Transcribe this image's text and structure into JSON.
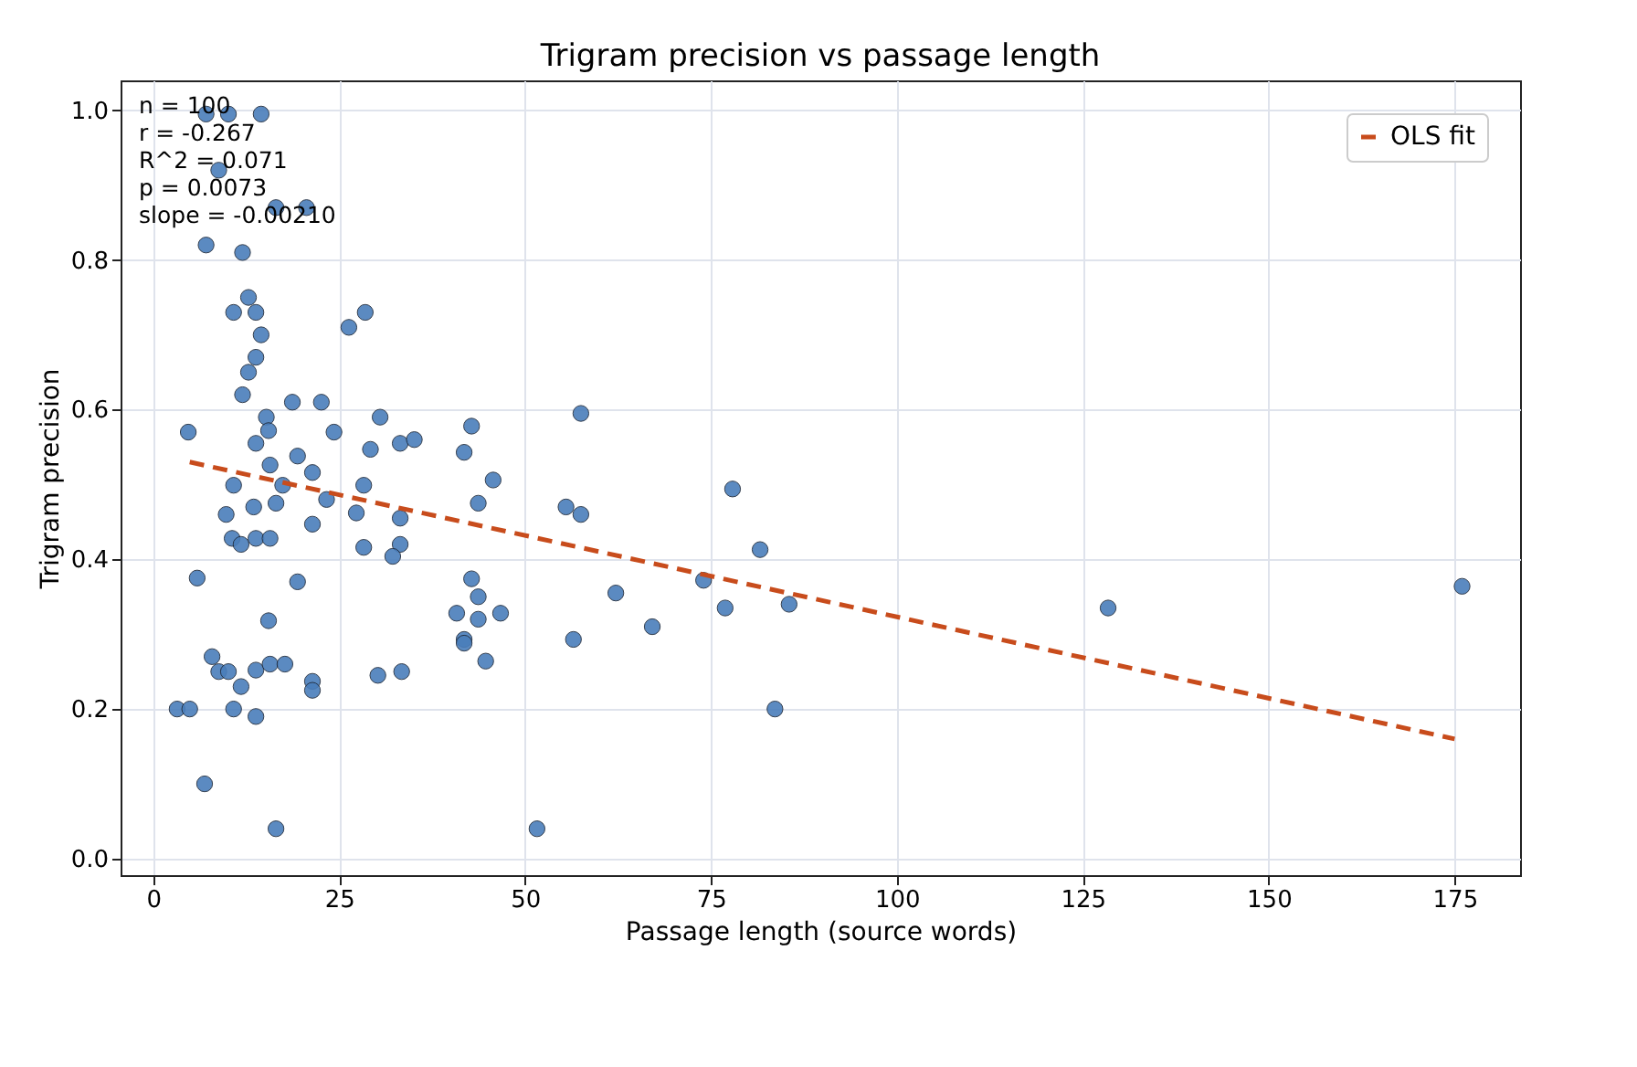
{
  "chart_data": {
    "type": "scatter",
    "title": "Trigram precision vs passage length",
    "xlabel": "Passage length (source words)",
    "ylabel": "Trigram precision",
    "xlim": [
      -4.4,
      183.8
    ],
    "ylim": [
      -0.022,
      1.04
    ],
    "xticks": [
      0,
      25,
      50,
      75,
      100,
      125,
      150,
      175
    ],
    "yticks": [
      {
        "value": 0,
        "label": "0.0"
      },
      {
        "value": 0.2,
        "label": "0.2"
      },
      {
        "value": 0.4,
        "label": "0.4"
      },
      {
        "value": 0.6,
        "label": "0.6"
      },
      {
        "value": 0.8,
        "label": "0.8"
      },
      {
        "value": 1,
        "label": "1.0"
      }
    ],
    "grid": true,
    "legend": "top right",
    "annotations": [
      "n = 100",
      "r = -0.267",
      "R^2 = 0.071",
      "p = 0.0073",
      "slope = -0.00210"
    ],
    "series": [
      {
        "color": "#4a7ebb",
        "marker": "circle",
        "x": [
          7.1,
          10.1,
          14.5,
          8.8,
          16.5,
          20.6,
          7.1,
          12,
          12.8,
          10.8,
          13.8,
          14.5,
          13.8,
          12.8,
          12,
          26.3,
          28.5,
          18.7,
          22.6,
          30.5,
          4.7,
          15.2,
          24.3,
          57.5,
          5.9,
          3.2,
          6.9,
          16.5,
          51.6,
          13.8,
          15.5,
          29.2,
          33.2,
          35.1,
          42.8,
          41.8,
          15.7,
          19.4,
          21.4,
          10.8,
          17.4,
          28.3,
          23.3,
          16.5,
          13.5,
          9.8,
          27.3,
          33.2,
          21.4,
          10.6,
          11.8,
          13.8,
          15.7,
          28.3,
          33.2,
          32.2,
          19.4,
          15.5,
          7.9,
          8.8,
          10.1,
          11.8,
          13.8,
          15.7,
          17.7,
          21.4,
          21.4,
          30.2,
          33.4,
          4.9,
          10.8,
          13.8,
          45.7,
          43.7,
          55.5,
          57.5,
          77.9,
          81.6,
          42.8,
          43.7,
          40.8,
          43.7,
          46.7,
          41.8,
          41.8,
          44.7,
          62.2,
          56.5,
          67.1,
          74,
          76.9,
          85.5,
          83.6,
          128.4,
          176
        ],
        "values": [
          0.995,
          0.995,
          0.995,
          0.92,
          0.87,
          0.87,
          0.82,
          0.81,
          0.75,
          0.73,
          0.73,
          0.7,
          0.67,
          0.65,
          0.62,
          0.71,
          0.73,
          0.61,
          0.61,
          0.59,
          0.57,
          0.59,
          0.57,
          0.595,
          0.375,
          0.2,
          0.1,
          0.04,
          0.04,
          0.555,
          0.572,
          0.547,
          0.555,
          0.56,
          0.578,
          0.543,
          0.526,
          0.538,
          0.516,
          0.499,
          0.499,
          0.499,
          0.48,
          0.475,
          0.47,
          0.46,
          0.462,
          0.455,
          0.447,
          0.428,
          0.42,
          0.428,
          0.428,
          0.416,
          0.42,
          0.404,
          0.37,
          0.318,
          0.27,
          0.25,
          0.25,
          0.23,
          0.252,
          0.26,
          0.26,
          0.237,
          0.225,
          0.245,
          0.25,
          0.2,
          0.2,
          0.19,
          0.506,
          0.475,
          0.47,
          0.46,
          0.494,
          0.413,
          0.374,
          0.35,
          0.328,
          0.32,
          0.328,
          0.293,
          0.288,
          0.264,
          0.355,
          0.293,
          0.31,
          0.372,
          0.335,
          0.34,
          0.2,
          0.335,
          0.364
        ]
      },
      {
        "type": "line",
        "name": "OLS fit",
        "color": "#c84c1c",
        "line_style": "dashed",
        "marker": "none",
        "x": [
          4.9,
          175
        ],
        "values": [
          0.53,
          0.16
        ]
      }
    ]
  }
}
